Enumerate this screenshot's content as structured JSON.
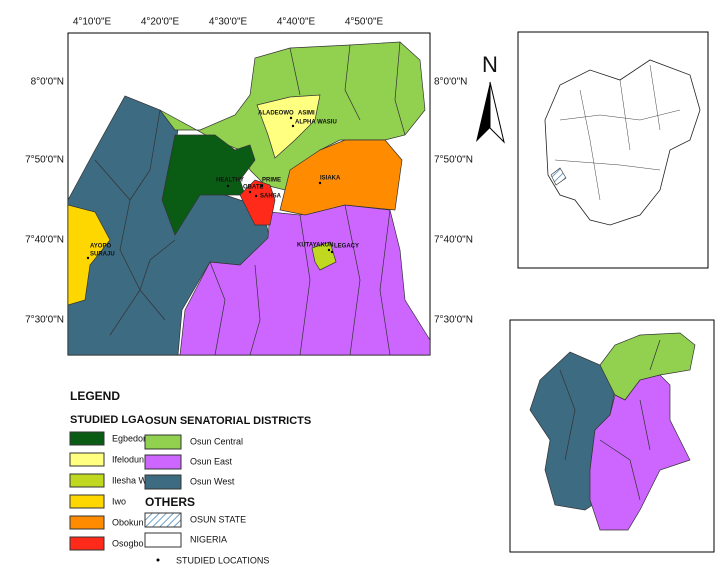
{
  "main_map": {
    "x_ticks": [
      "4°10'0\"E",
      "4°20'0\"E",
      "4°30'0\"E",
      "4°40'0\"E",
      "4°50'0\"E"
    ],
    "y_ticks": [
      "8°0'0\"N",
      "7°50'0\"N",
      "7°40'0\"N",
      "7°30'0\"N"
    ],
    "locations": [
      "ALADEOWO",
      "ASIMI",
      "ALPHA WASIU",
      "HEALTHY",
      "OBATE",
      "PRIME",
      "SAHSA",
      "ISIAKA",
      "KUTAYAKUN",
      "LEGACY",
      "AYOPO",
      "SURAJU"
    ]
  },
  "north_arrow": "N",
  "legend": {
    "title": "LEGEND",
    "studied_lga": {
      "title": "STUDIED LGA",
      "items": [
        "Egbedore",
        "Ifelodun",
        "Ilesha West",
        "Iwo",
        "Obokun",
        "Osogbo"
      ]
    },
    "districts": {
      "title": "OSUN SENATORIAL DISTRICTS",
      "items": [
        "Osun Central",
        "Osun East",
        "Osun West"
      ]
    },
    "others": {
      "title": "OTHERS",
      "items": [
        "OSUN STATE",
        "NIGERIA",
        "STUDIED LOCATIONS"
      ]
    }
  }
}
